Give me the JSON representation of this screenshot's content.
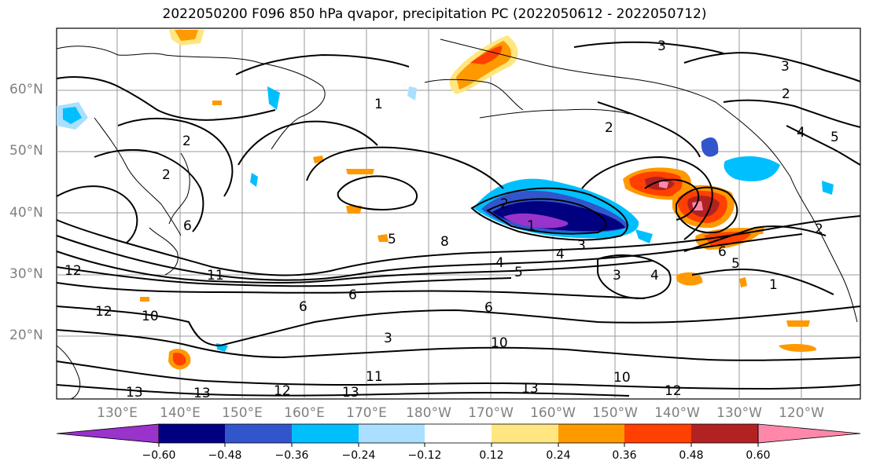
{
  "title": "2022050200 F096 850 hPa qvapor, precipitation PC (2022050612 - 2022050712)",
  "lat_labels": [
    "60°N",
    "50°N",
    "40°N",
    "30°N",
    "20°N"
  ],
  "lon_labels": [
    "130°E",
    "140°E",
    "150°E",
    "160°E",
    "170°E",
    "180°W",
    "170°W",
    "160°W",
    "150°W",
    "140°W",
    "130°W",
    "120°W"
  ],
  "colorbar": {
    "ticks": [
      "−0.60",
      "−0.48",
      "−0.36",
      "−0.24",
      "−0.12",
      "0.12",
      "0.24",
      "0.36",
      "0.48",
      "0.60"
    ],
    "colors": [
      "#9933cc",
      "#000080",
      "#3355cc",
      "#00bfff",
      "#aadfff",
      "#ffffff",
      "#ffe680",
      "#ff9900",
      "#ff4000",
      "#b22222",
      "#ff88aa"
    ]
  },
  "contour_labels": [
    "1",
    "2",
    "2",
    "2",
    "3",
    "3",
    "3",
    "4",
    "5",
    "6",
    "8",
    "10",
    "11",
    "12",
    "13",
    "13",
    "12",
    "13",
    "12",
    "10",
    "6",
    "4",
    "5",
    "6",
    "4",
    "5",
    "3",
    "2",
    "1",
    "6",
    "1",
    "2",
    "3",
    "4",
    "5",
    "6",
    "2",
    "10",
    "11",
    "13",
    "12"
  ]
}
